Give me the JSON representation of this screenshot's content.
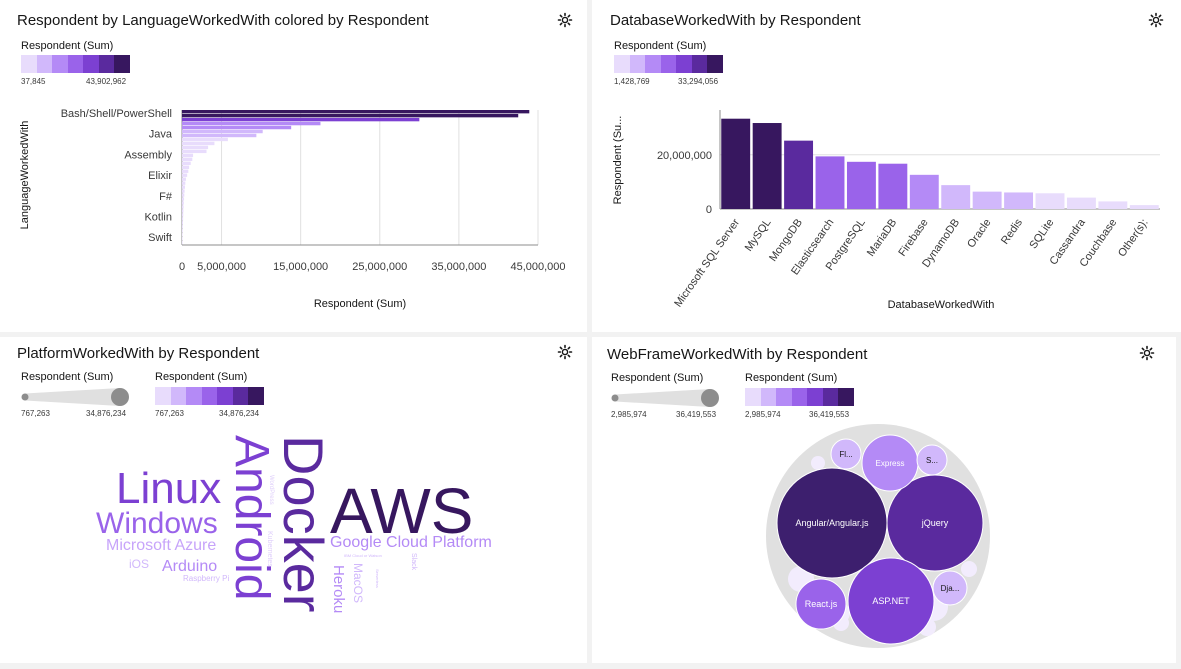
{
  "palette": [
    "#e8dcfc",
    "#d1b8fb",
    "#b48af6",
    "#9a63ea",
    "#7c40d2",
    "#5a2a9e",
    "#37175f"
  ],
  "chart1": {
    "title": "Respondent by LanguageWorkedWith colored by Respondent",
    "legend": {
      "label": "Respondent (Sum)",
      "min": "37,845",
      "max": "43,902,962"
    },
    "ylabel": "LanguageWorkedWith",
    "xlabel": "Respondent (Sum)",
    "tick_labels": [
      "0",
      "5,000,000",
      "15,000,000",
      "25,000,000",
      "35,000,000",
      "45,000,000"
    ],
    "category_labels": [
      "Bash/Shell/PowerShell",
      "Java",
      "Assembly",
      "Elixir",
      "F#",
      "Kotlin",
      "Swift"
    ],
    "chart_data": {
      "type": "bar",
      "orientation": "horizontal",
      "xlim": [
        0,
        45000000
      ],
      "values": [
        43900000,
        42500000,
        30000000,
        17500000,
        13800000,
        10200000,
        9400000,
        5800000,
        4100000,
        3300000,
        3100000,
        1400000,
        1300000,
        1100000,
        900000,
        800000,
        650000,
        500000,
        420000,
        380000,
        330000,
        290000,
        260000,
        230000,
        200000,
        180000,
        160000,
        140000,
        120000,
        100000,
        80000,
        60000,
        45000,
        37845
      ]
    }
  },
  "chart2": {
    "title": "DatabaseWorkedWith by Respondent",
    "legend": {
      "label": "Respondent (Sum)",
      "min": "1,428,769",
      "max": "33,294,056"
    },
    "ylabel": "Respondent (Su...",
    "xlabel": "DatabaseWorkedWith",
    "tick_labels": [
      "0",
      "20,000,000"
    ],
    "chart_data": {
      "type": "bar",
      "ylim": [
        0,
        36500000
      ],
      "categories": [
        "Microsoft SQL Server",
        "MySQL",
        "MongoDB",
        "Elasticsearch",
        "PostgreSQL",
        "MariaDB",
        "Firebase",
        "DynamoDB",
        "Oracle",
        "Redis",
        "SQLite",
        "Cassandra",
        "Couchbase",
        "Other(s):"
      ],
      "values": [
        33294056,
        31700000,
        25200000,
        19400000,
        17400000,
        16700000,
        12600000,
        8800000,
        6400000,
        6100000,
        5800000,
        4200000,
        2800000,
        1428769
      ]
    }
  },
  "chart3": {
    "title": "PlatformWorkedWith by Respondent",
    "legend_size": {
      "label": "Respondent (Sum)",
      "min": "767,263",
      "max": "34,876,234"
    },
    "legend_color": {
      "label": "Respondent (Sum)",
      "min": "767,263",
      "max": "34,876,234"
    },
    "words": [
      "AWS",
      "Docker",
      "Android",
      "Linux",
      "Windows",
      "Google Cloud Platform",
      "Microsoft Azure",
      "Arduino",
      "Heroku",
      "MacOS",
      "iOS",
      "Raspberry Pi",
      "Kubernetes",
      "WordPress",
      "Slack",
      "IBM Cloud or Watson",
      "Serverless"
    ]
  },
  "chart4": {
    "title": "WebFrameWorkedWith by Respondent",
    "legend_size": {
      "label": "Respondent (Sum)",
      "min": "2,985,974",
      "max": "36,419,553"
    },
    "legend_color": {
      "label": "Respondent (Sum)",
      "min": "2,985,974",
      "max": "36,419,553"
    },
    "bubbles": [
      "Angular/Angular.js",
      "jQuery",
      "ASP.NET",
      "React.js",
      "Express",
      "Fl...",
      "S...",
      "Dja..."
    ],
    "chart_data": {
      "type": "bubble",
      "categories": [
        "Angular/Angular.js",
        "jQuery",
        "ASP.NET",
        "React.js",
        "Express",
        "Flask",
        "Spring",
        "Django"
      ],
      "values": [
        36419553,
        30000000,
        26000000,
        10600000,
        10700000,
        3600000,
        2985974,
        4600000
      ]
    }
  }
}
